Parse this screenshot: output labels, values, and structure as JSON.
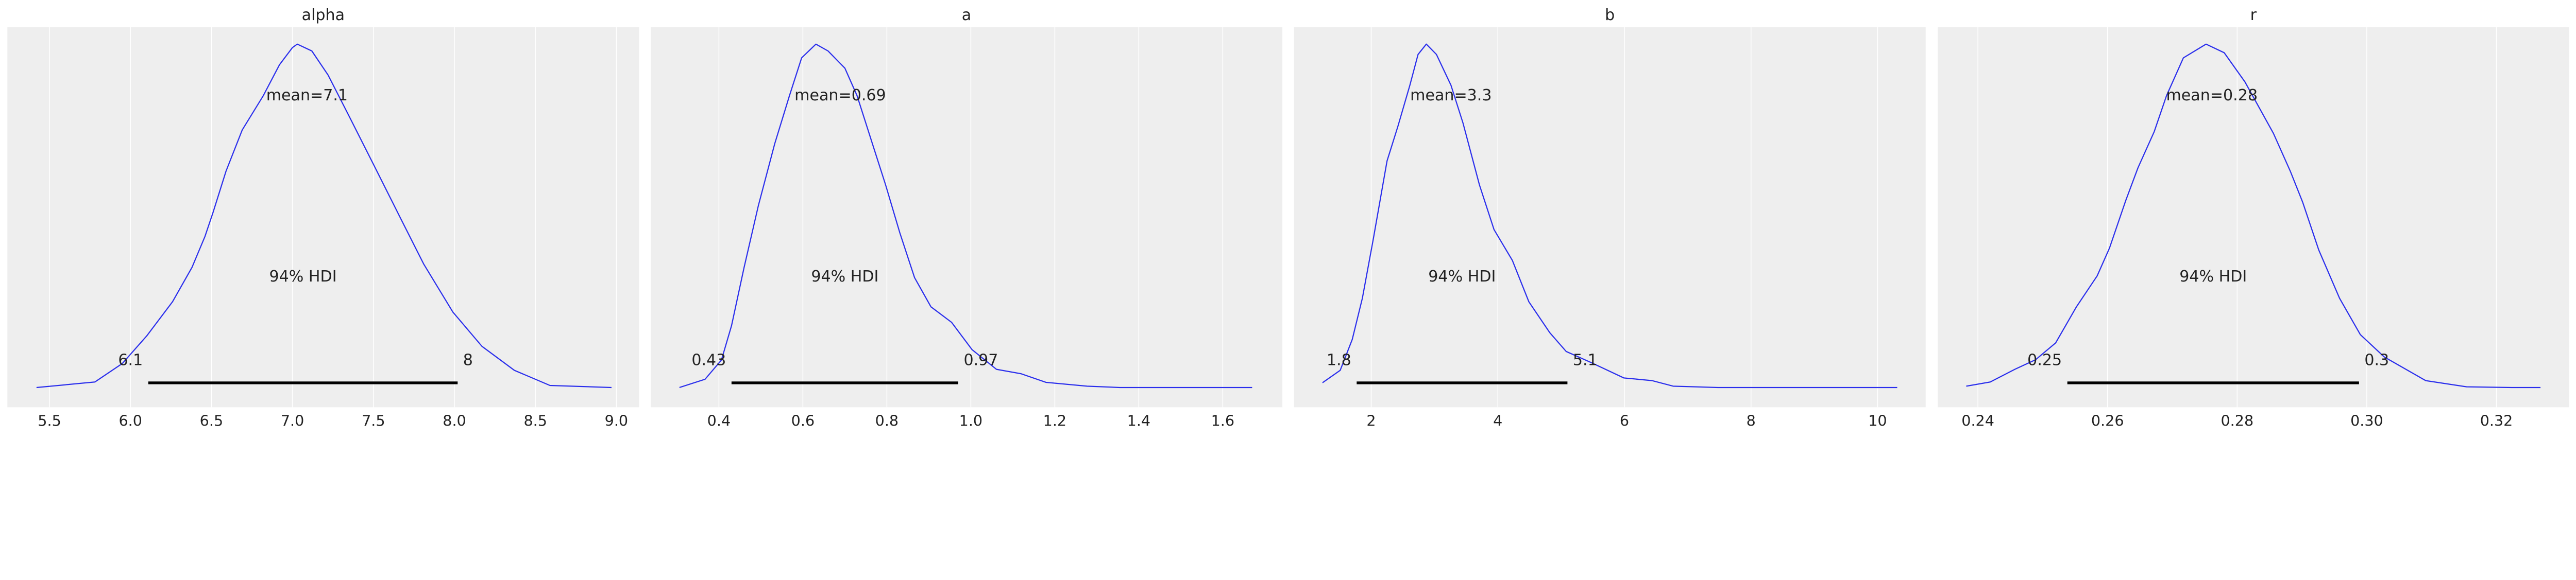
{
  "chart_data": [
    {
      "type": "line",
      "title": "alpha",
      "xlim": [
        5.24,
        9.14
      ],
      "xticks": [
        5.5,
        6.0,
        6.5,
        7.0,
        7.5,
        8.0,
        8.5,
        9.0
      ],
      "xtick_labels": [
        "5.5",
        "6.0",
        "6.5",
        "7.0",
        "7.5",
        "8.0",
        "8.5",
        "9.0"
      ],
      "grid": true,
      "color": "#2a2eec",
      "density_relative": [
        [
          5.42,
          0
        ],
        [
          5.78,
          0.016
        ],
        [
          5.95,
          0.07
        ],
        [
          6.1,
          0.15
        ],
        [
          6.26,
          0.25
        ],
        [
          6.38,
          0.35
        ],
        [
          6.46,
          0.44
        ],
        [
          6.51,
          0.51
        ],
        [
          6.59,
          0.63
        ],
        [
          6.69,
          0.75
        ],
        [
          6.82,
          0.85
        ],
        [
          6.92,
          0.94
        ],
        [
          7.0,
          0.99
        ],
        [
          7.03,
          1
        ],
        [
          7.12,
          0.98
        ],
        [
          7.22,
          0.91
        ],
        [
          7.35,
          0.79
        ],
        [
          7.5,
          0.65
        ],
        [
          7.66,
          0.5
        ],
        [
          7.81,
          0.36
        ],
        [
          7.99,
          0.22
        ],
        [
          8.17,
          0.12
        ],
        [
          8.37,
          0.05
        ],
        [
          8.59,
          0.006
        ],
        [
          8.97,
          0
        ]
      ],
      "mean": 7.09,
      "mean_label": "mean=7.1",
      "hdi": [
        6.11,
        8.02
      ],
      "hdi_label": "94% HDI",
      "hdi_low_label": "6.1",
      "hdi_high_label": "8"
    },
    {
      "type": "line",
      "title": "a",
      "xlim": [
        0.2375,
        1.742
      ],
      "xticks": [
        0.4,
        0.6,
        0.8,
        1.0,
        1.2,
        1.4,
        1.6
      ],
      "xtick_labels": [
        "0.4",
        "0.6",
        "0.8",
        "1.0",
        "1.2",
        "1.4",
        "1.6"
      ],
      "grid": true,
      "color": "#2a2eec",
      "density_relative": [
        [
          0.306,
          0
        ],
        [
          0.367,
          0.024
        ],
        [
          0.406,
          0.08
        ],
        [
          0.43,
          0.18
        ],
        [
          0.46,
          0.35
        ],
        [
          0.494,
          0.53
        ],
        [
          0.533,
          0.71
        ],
        [
          0.568,
          0.85
        ],
        [
          0.597,
          0.96
        ],
        [
          0.631,
          1
        ],
        [
          0.66,
          0.98
        ],
        [
          0.7,
          0.93
        ],
        [
          0.729,
          0.85
        ],
        [
          0.763,
          0.72
        ],
        [
          0.797,
          0.59
        ],
        [
          0.831,
          0.45
        ],
        [
          0.866,
          0.32
        ],
        [
          0.905,
          0.235
        ],
        [
          0.954,
          0.19
        ],
        [
          1.003,
          0.11
        ],
        [
          1.061,
          0.053
        ],
        [
          1.12,
          0.04
        ],
        [
          1.179,
          0.015
        ],
        [
          1.277,
          0.004
        ],
        [
          1.355,
          0
        ],
        [
          1.49,
          0
        ],
        [
          1.67,
          0
        ]
      ],
      "mean": 0.689,
      "mean_label": "mean=0.69",
      "hdi": [
        0.43,
        0.97
      ],
      "hdi_label": "94% HDI",
      "hdi_low_label": "0.43",
      "hdi_high_label": "0.97"
    },
    {
      "type": "line",
      "title": "b",
      "xlim": [
        0.78,
        10.76
      ],
      "xticks": [
        2,
        4,
        6,
        8,
        10
      ],
      "xtick_labels": [
        "2",
        "4",
        "6",
        "8",
        "10"
      ],
      "grid": true,
      "color": "#2a2eec",
      "density_relative": [
        [
          1.23,
          0.014
        ],
        [
          1.51,
          0.05
        ],
        [
          1.7,
          0.14
        ],
        [
          1.86,
          0.26
        ],
        [
          2.03,
          0.43
        ],
        [
          2.25,
          0.66
        ],
        [
          2.42,
          0.76
        ],
        [
          2.61,
          0.88
        ],
        [
          2.74,
          0.97
        ],
        [
          2.87,
          1
        ],
        [
          3.03,
          0.97
        ],
        [
          3.26,
          0.88
        ],
        [
          3.45,
          0.77
        ],
        [
          3.71,
          0.59
        ],
        [
          3.94,
          0.46
        ],
        [
          4.23,
          0.37
        ],
        [
          4.49,
          0.25
        ],
        [
          4.82,
          0.16
        ],
        [
          5.08,
          0.105
        ],
        [
          5.47,
          0.073
        ],
        [
          5.99,
          0.028
        ],
        [
          6.44,
          0.02
        ],
        [
          6.77,
          0.004
        ],
        [
          7.48,
          0
        ],
        [
          10.31,
          0
        ]
      ],
      "mean": 3.26,
      "mean_label": "mean=3.3",
      "hdi": [
        1.77,
        5.1
      ],
      "hdi_label": "94% HDI",
      "hdi_low_label": "1.8",
      "hdi_high_label": "5.1"
    },
    {
      "type": "line",
      "title": "r",
      "xlim": [
        0.2338,
        0.3312
      ],
      "xticks": [
        0.24,
        0.26,
        0.28,
        0.3,
        0.32
      ],
      "xtick_labels": [
        "0.24",
        "0.26",
        "0.28",
        "0.30",
        "0.32"
      ],
      "grid": true,
      "color": "#2a2eec",
      "density_relative": [
        [
          0.2382,
          0.004
        ],
        [
          0.2419,
          0.016
        ],
        [
          0.2457,
          0.053
        ],
        [
          0.2489,
          0.081
        ],
        [
          0.252,
          0.13
        ],
        [
          0.2552,
          0.235
        ],
        [
          0.2584,
          0.325
        ],
        [
          0.2603,
          0.406
        ],
        [
          0.2628,
          0.544
        ],
        [
          0.2647,
          0.64
        ],
        [
          0.2672,
          0.745
        ],
        [
          0.2691,
          0.85
        ],
        [
          0.2717,
          0.96
        ],
        [
          0.2752,
          1
        ],
        [
          0.278,
          0.975
        ],
        [
          0.2812,
          0.89
        ],
        [
          0.2856,
          0.74
        ],
        [
          0.2882,
          0.63
        ],
        [
          0.2901,
          0.54
        ],
        [
          0.2926,
          0.4
        ],
        [
          0.2958,
          0.26
        ],
        [
          0.299,
          0.154
        ],
        [
          0.3027,
          0.089
        ],
        [
          0.3091,
          0.02
        ],
        [
          0.3154,
          0.002
        ],
        [
          0.3224,
          0
        ],
        [
          0.3268,
          0
        ]
      ],
      "mean": 0.2761,
      "mean_label": "mean=0.28",
      "hdi": [
        0.2538,
        0.2988
      ],
      "hdi_label": "94% HDI",
      "hdi_low_label": "0.25",
      "hdi_high_label": "0.3"
    }
  ]
}
